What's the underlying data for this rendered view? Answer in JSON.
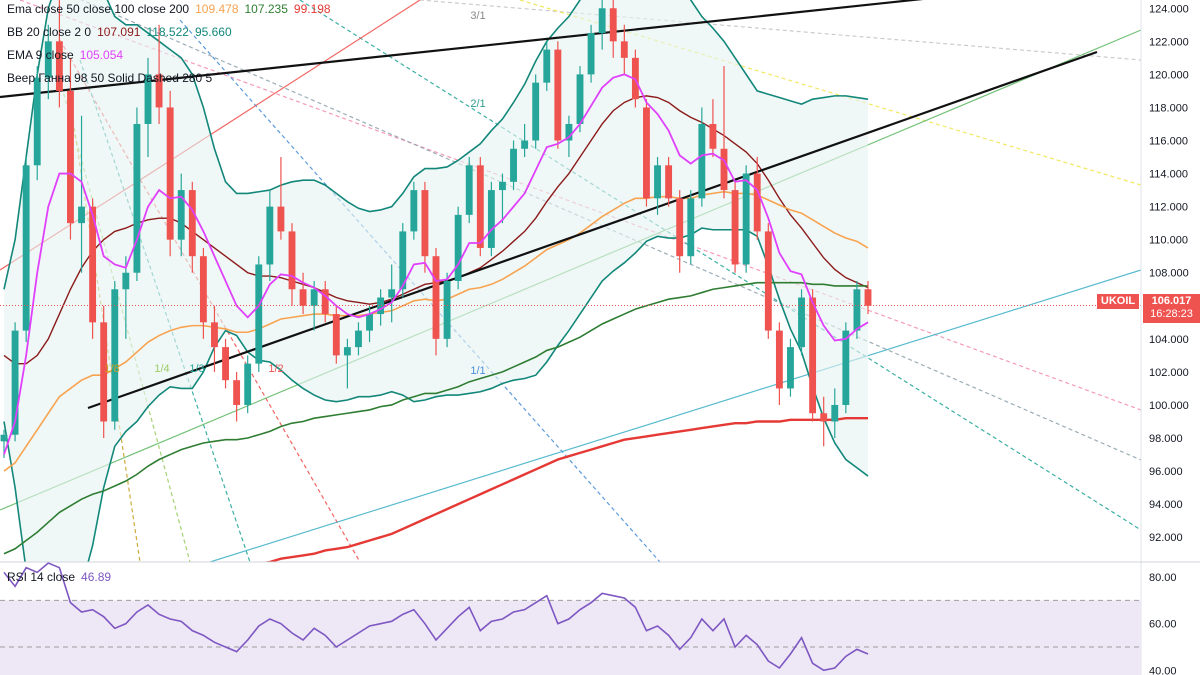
{
  "legend": {
    "ema_trio": {
      "label": "Ema close 50 close 100 close 200",
      "v1": "109.478",
      "v2": "107.235",
      "v3": "99.198",
      "c1": "#f7a350",
      "c2": "#2e7d32",
      "c3": "#e53935"
    },
    "bb": {
      "label": "BB 20 close 2 0",
      "v1": "107.091",
      "v2": "118.522",
      "v3": "95.660",
      "c1": "#8b1a1a",
      "c2": "#12877a",
      "c3": "#12877a"
    },
    "ema9": {
      "label": "EMA 9 close",
      "v1": "105.054",
      "c1": "#e040fb"
    },
    "gann": {
      "label": "Веер Ганна 98 50 Solid Dashed 280 5"
    }
  },
  "price_tag": {
    "symbol": "UKOIL",
    "price": "106.017",
    "countdown": "16:28:23",
    "color": "#ef5350"
  },
  "rsi": {
    "label": "RSI 14 close",
    "value": "46.89",
    "color": "#7e57c2"
  },
  "gann_labels": [
    "3/1",
    "2/1",
    "1/1",
    "1/8",
    "1/4",
    "1/3",
    "1/2"
  ],
  "colors": {
    "up": "#26a69a",
    "down": "#ef5350",
    "bb_fill": "#e6f4f1",
    "rsi_band": "#ede7f6"
  },
  "chart_data": [
    {
      "type": "candlestick",
      "symbol": "UKOIL",
      "ylim": [
        90.5,
        124.5
      ],
      "y_ticks": [
        "124.000",
        "122.000",
        "120.000",
        "118.000",
        "116.000",
        "114.000",
        "112.000",
        "110.000",
        "108.000",
        "106.000",
        "104.000",
        "102.000",
        "100.000",
        "98.000",
        "96.000",
        "94.000",
        "92.000"
      ],
      "last_price": 106.017,
      "candles": [
        [
          97.8,
          98.5,
          96.8,
          98.2
        ],
        [
          98.2,
          105.0,
          97.8,
          104.5
        ],
        [
          104.5,
          115.0,
          103.8,
          114.5
        ],
        [
          114.5,
          120.5,
          113.6,
          119.8
        ],
        [
          119.8,
          123.0,
          118.5,
          122.0
        ],
        [
          122.0,
          124.5,
          118.0,
          119.0
        ],
        [
          119.0,
          121.0,
          110.0,
          111.0
        ],
        [
          111.0,
          117.5,
          108.0,
          112.0
        ],
        [
          112.0,
          112.5,
          104.0,
          105.0
        ],
        [
          105.0,
          106.0,
          98.0,
          99.0
        ],
        [
          99.0,
          107.5,
          98.5,
          107.0
        ],
        [
          107.0,
          109.0,
          104.0,
          108.0
        ],
        [
          108.0,
          118.0,
          107.5,
          117.0
        ],
        [
          117.0,
          121.0,
          115.0,
          120.0
        ],
        [
          120.0,
          123.0,
          117.0,
          118.0
        ],
        [
          118.0,
          119.0,
          109.0,
          110.0
        ],
        [
          110.0,
          114.0,
          109.0,
          113.0
        ],
        [
          113.0,
          113.5,
          108.0,
          109.0
        ],
        [
          109.0,
          109.5,
          104.0,
          105.0
        ],
        [
          105.0,
          106.0,
          102.0,
          103.5
        ],
        [
          103.5,
          104.0,
          101.0,
          101.5
        ],
        [
          101.5,
          102.0,
          99.0,
          100.0
        ],
        [
          100.0,
          103.0,
          99.5,
          102.5
        ],
        [
          102.5,
          109.0,
          102.0,
          108.5
        ],
        [
          108.5,
          113.0,
          107.5,
          112.0
        ],
        [
          112.0,
          115.0,
          110.0,
          110.5
        ],
        [
          110.5,
          111.0,
          106.0,
          107.0
        ],
        [
          107.0,
          108.0,
          105.5,
          106.0
        ],
        [
          106.0,
          107.5,
          104.5,
          107.0
        ],
        [
          107.0,
          107.5,
          105.0,
          105.5
        ],
        [
          105.5,
          106.0,
          102.5,
          103.0
        ],
        [
          103.0,
          104.0,
          101.0,
          103.5
        ],
        [
          103.5,
          105.0,
          103.0,
          104.5
        ],
        [
          104.5,
          106.0,
          103.8,
          105.5
        ],
        [
          105.5,
          107.0,
          104.8,
          106.5
        ],
        [
          106.5,
          108.5,
          105.0,
          107.0
        ],
        [
          107.0,
          111.0,
          106.5,
          110.5
        ],
        [
          110.5,
          113.5,
          110.0,
          113.0
        ],
        [
          113.0,
          113.5,
          108.0,
          109.0
        ],
        [
          109.0,
          109.5,
          103.0,
          104.0
        ],
        [
          104.0,
          108.0,
          103.5,
          107.5
        ],
        [
          107.5,
          112.0,
          107.0,
          111.5
        ],
        [
          111.5,
          115.0,
          111.0,
          114.5
        ],
        [
          114.5,
          115.0,
          109.0,
          109.5
        ],
        [
          109.5,
          113.5,
          109.0,
          113.0
        ],
        [
          113.0,
          114.0,
          111.0,
          113.5
        ],
        [
          113.5,
          116.0,
          113.0,
          115.5
        ],
        [
          115.5,
          117.0,
          115.0,
          116.0
        ],
        [
          116.0,
          120.0,
          115.5,
          119.5
        ],
        [
          119.5,
          122.0,
          119.0,
          121.5
        ],
        [
          121.5,
          122.0,
          115.5,
          116.0
        ],
        [
          116.0,
          117.5,
          115.0,
          117.0
        ],
        [
          117.0,
          120.5,
          116.5,
          120.0
        ],
        [
          120.0,
          123.0,
          119.5,
          122.5
        ],
        [
          122.5,
          124.5,
          121.5,
          124.0
        ],
        [
          124.0,
          124.5,
          121.0,
          122.0
        ],
        [
          122.0,
          123.0,
          120.0,
          121.0
        ],
        [
          121.0,
          121.5,
          118.0,
          118.5
        ],
        [
          118.0,
          118.5,
          112.0,
          112.5
        ],
        [
          112.5,
          115.0,
          111.5,
          114.5
        ],
        [
          114.5,
          115.0,
          112.0,
          112.5
        ],
        [
          112.5,
          113.0,
          108.0,
          109.0
        ],
        [
          109.0,
          113.0,
          108.5,
          112.5
        ],
        [
          112.5,
          118.0,
          112.0,
          117.0
        ],
        [
          117.0,
          118.5,
          115.0,
          115.5
        ],
        [
          115.5,
          120.5,
          112.5,
          113.0
        ],
        [
          113.0,
          113.5,
          108.0,
          108.5
        ],
        [
          108.5,
          114.5,
          108.0,
          114.0
        ],
        [
          114.0,
          115.0,
          110.0,
          110.5
        ],
        [
          110.5,
          111.0,
          104.0,
          104.5
        ],
        [
          104.5,
          105.0,
          100.0,
          101.0
        ],
        [
          101.0,
          104.0,
          100.5,
          103.5
        ],
        [
          103.5,
          107.0,
          103.0,
          106.5
        ],
        [
          106.5,
          107.0,
          99.0,
          99.5
        ],
        [
          99.5,
          100.5,
          97.5,
          99.0
        ],
        [
          99.0,
          101.0,
          98.0,
          100.0
        ],
        [
          100.0,
          105.0,
          99.5,
          104.5
        ],
        [
          104.5,
          107.5,
          104.0,
          107.0
        ],
        [
          107.0,
          107.5,
          105.5,
          106.0
        ]
      ],
      "ema50": [
        96.0,
        96.5,
        97.5,
        98.5,
        99.5,
        100.5,
        101.0,
        101.5,
        101.8,
        101.8,
        102.2,
        102.6,
        103.2,
        103.8,
        104.2,
        104.5,
        104.7,
        104.8,
        104.8,
        104.7,
        104.6,
        104.4,
        104.4,
        104.6,
        104.9,
        105.2,
        105.3,
        105.4,
        105.5,
        105.5,
        105.4,
        105.4,
        105.4,
        105.5,
        105.6,
        105.7,
        106.0,
        106.3,
        106.4,
        106.3,
        106.4,
        106.7,
        107.0,
        107.1,
        107.3,
        107.6,
        108.0,
        108.4,
        108.9,
        109.4,
        109.7,
        110.0,
        110.4,
        110.9,
        111.4,
        111.8,
        112.2,
        112.5,
        112.5,
        112.6,
        112.6,
        112.5,
        112.5,
        112.7,
        112.8,
        112.9,
        112.8,
        112.8,
        112.7,
        112.4,
        112.1,
        111.8,
        111.6,
        111.2,
        110.8,
        110.4,
        110.1,
        109.9,
        109.5
      ],
      "ema100": [
        91.0,
        91.3,
        91.8,
        92.3,
        92.9,
        93.5,
        93.9,
        94.3,
        94.6,
        94.8,
        95.1,
        95.4,
        95.8,
        96.3,
        96.7,
        97.0,
        97.3,
        97.5,
        97.7,
        97.8,
        97.9,
        97.9,
        98.0,
        98.2,
        98.4,
        98.7,
        98.9,
        99.0,
        99.2,
        99.3,
        99.4,
        99.5,
        99.6,
        99.7,
        99.9,
        100.0,
        100.3,
        100.5,
        100.7,
        100.7,
        100.9,
        101.1,
        101.4,
        101.6,
        101.8,
        102.0,
        102.3,
        102.6,
        102.9,
        103.3,
        103.5,
        103.8,
        104.1,
        104.5,
        104.9,
        105.2,
        105.5,
        105.8,
        106.0,
        106.2,
        106.4,
        106.5,
        106.6,
        106.8,
        107.0,
        107.1,
        107.2,
        107.3,
        107.4,
        107.4,
        107.4,
        107.4,
        107.4,
        107.3,
        107.3,
        107.2,
        107.2,
        107.2,
        107.2
      ],
      "ema200": [
        88.0,
        88.1,
        88.2,
        88.3,
        88.4,
        88.5,
        88.6,
        88.7,
        88.8,
        88.9,
        89.0,
        89.1,
        89.2,
        89.3,
        89.5,
        89.6,
        89.7,
        89.8,
        89.9,
        90.0,
        90.1,
        90.2,
        90.3,
        90.4,
        90.5,
        90.7,
        90.8,
        90.9,
        91.0,
        91.2,
        91.3,
        91.4,
        91.6,
        91.8,
        92.0,
        92.2,
        92.5,
        92.8,
        93.1,
        93.4,
        93.7,
        94.0,
        94.3,
        94.6,
        94.9,
        95.2,
        95.5,
        95.8,
        96.1,
        96.4,
        96.7,
        96.9,
        97.1,
        97.3,
        97.5,
        97.7,
        97.9,
        98.0,
        98.1,
        98.2,
        98.3,
        98.4,
        98.5,
        98.6,
        98.7,
        98.8,
        98.9,
        98.9,
        99.0,
        99.0,
        99.0,
        99.1,
        99.1,
        99.1,
        99.1,
        99.1,
        99.2,
        99.2,
        99.2
      ],
      "ema9": [
        97.0,
        99.0,
        103.0,
        108.0,
        112.0,
        114.0,
        114.0,
        113.5,
        111.5,
        109.0,
        108.5,
        108.3,
        110.0,
        112.0,
        113.0,
        112.5,
        112.6,
        111.8,
        110.5,
        109.0,
        107.5,
        106.0,
        105.3,
        106.0,
        107.3,
        107.9,
        107.8,
        107.4,
        107.1,
        106.6,
        106.0,
        105.5,
        105.3,
        105.5,
        105.8,
        106.2,
        107.2,
        108.5,
        108.6,
        107.5,
        107.6,
        108.5,
        109.8,
        109.8,
        110.6,
        111.2,
        112.0,
        112.8,
        114.2,
        115.6,
        115.8,
        116.2,
        117.0,
        118.1,
        119.2,
        119.8,
        120.0,
        119.7,
        118.3,
        117.6,
        116.6,
        115.1,
        114.6,
        115.1,
        115.2,
        114.8,
        113.5,
        113.6,
        113.0,
        111.3,
        109.2,
        108.1,
        107.9,
        106.2,
        104.8,
        103.9,
        104.0,
        104.6,
        105.0
      ],
      "bb_mid": [
        103.0,
        102.5,
        102.5,
        103.0,
        104.0,
        105.5,
        107.0,
        108.3,
        109.3,
        110.0,
        110.5,
        110.7,
        111.0,
        111.2,
        111.3,
        111.3,
        111.0,
        110.5,
        110.0,
        109.5,
        109.0,
        108.5,
        108.0,
        107.8,
        107.8,
        107.7,
        107.5,
        107.3,
        107.1,
        106.8,
        106.5,
        106.3,
        106.2,
        106.1,
        106.2,
        106.4,
        106.7,
        107.0,
        107.3,
        107.4,
        107.5,
        107.7,
        108.0,
        108.3,
        108.8,
        109.3,
        109.9,
        110.5,
        111.3,
        112.3,
        113.2,
        114.0,
        115.0,
        116.0,
        117.0,
        117.8,
        118.3,
        118.6,
        118.7,
        118.6,
        118.3,
        117.8,
        117.4,
        117.1,
        116.7,
        116.3,
        115.8,
        115.3,
        114.6,
        113.6,
        112.5,
        111.5,
        110.7,
        109.8,
        108.9,
        108.2,
        107.7,
        107.4,
        107.1
      ],
      "bb_upper": [
        107.0,
        110.0,
        115.0,
        120.0,
        124.0,
        126.0,
        127.0,
        127.5,
        127.0,
        125.0,
        123.5,
        123.0,
        123.0,
        122.5,
        122.0,
        121.5,
        121.0,
        120.0,
        118.0,
        115.5,
        113.5,
        112.8,
        112.8,
        112.9,
        113.0,
        113.3,
        113.5,
        113.6,
        113.6,
        113.3,
        112.8,
        112.3,
        111.9,
        111.7,
        111.8,
        112.0,
        112.8,
        113.8,
        114.3,
        114.3,
        114.4,
        114.8,
        115.3,
        115.8,
        116.6,
        117.3,
        118.3,
        119.4,
        120.8,
        122.0,
        122.8,
        123.5,
        124.5,
        125.5,
        126.5,
        127.5,
        128.0,
        128.0,
        127.5,
        127.0,
        126.5,
        125.5,
        124.5,
        123.5,
        122.8,
        122.0,
        121.0,
        120.0,
        119.0,
        118.8,
        118.6,
        118.4,
        118.2,
        118.5,
        118.6,
        118.7,
        118.7,
        118.6,
        118.5
      ],
      "bb_lower": [
        99.0,
        95.0,
        90.0,
        86.0,
        84.0,
        85.0,
        87.0,
        89.0,
        91.5,
        95.0,
        97.5,
        98.4,
        99.0,
        99.9,
        100.6,
        101.1,
        101.0,
        101.0,
        102.0,
        103.5,
        104.5,
        104.2,
        103.2,
        102.7,
        102.6,
        102.1,
        101.5,
        101.0,
        100.6,
        100.3,
        100.2,
        100.3,
        100.5,
        100.5,
        100.6,
        100.8,
        100.6,
        100.2,
        100.3,
        100.5,
        100.6,
        100.6,
        100.7,
        100.8,
        101.0,
        101.3,
        101.5,
        101.6,
        101.8,
        102.6,
        103.6,
        104.5,
        105.5,
        106.5,
        107.5,
        108.1,
        108.6,
        109.2,
        109.9,
        110.2,
        110.1,
        110.1,
        110.3,
        110.7,
        110.6,
        110.6,
        110.6,
        110.6,
        110.2,
        108.4,
        106.4,
        104.6,
        103.2,
        101.1,
        99.2,
        97.7,
        96.7,
        96.2,
        95.7
      ],
      "x_axis": "none shown",
      "y_axis_side": "right"
    },
    {
      "type": "line",
      "name": "RSI 14 close",
      "ylim": [
        38,
        86
      ],
      "y_ticks": [
        "80.00",
        "60.00",
        "40.00"
      ],
      "bands": [
        70,
        50
      ],
      "values": [
        82,
        76,
        84,
        82,
        86,
        84,
        69,
        65,
        66,
        63,
        58,
        60,
        65,
        68,
        64,
        62,
        61,
        57,
        55,
        52,
        50,
        48,
        53,
        59,
        62,
        60,
        56,
        53,
        58,
        55,
        50,
        53,
        56,
        59,
        60,
        61,
        64,
        66,
        60,
        53,
        58,
        63,
        67,
        57,
        61,
        62,
        65,
        66,
        69,
        72,
        60,
        62,
        66,
        69,
        73,
        72,
        71,
        67,
        57,
        59,
        55,
        49,
        54,
        62,
        57,
        62,
        50,
        55,
        51,
        44,
        41,
        47,
        54,
        43,
        40,
        41,
        46,
        49,
        47
      ]
    }
  ]
}
